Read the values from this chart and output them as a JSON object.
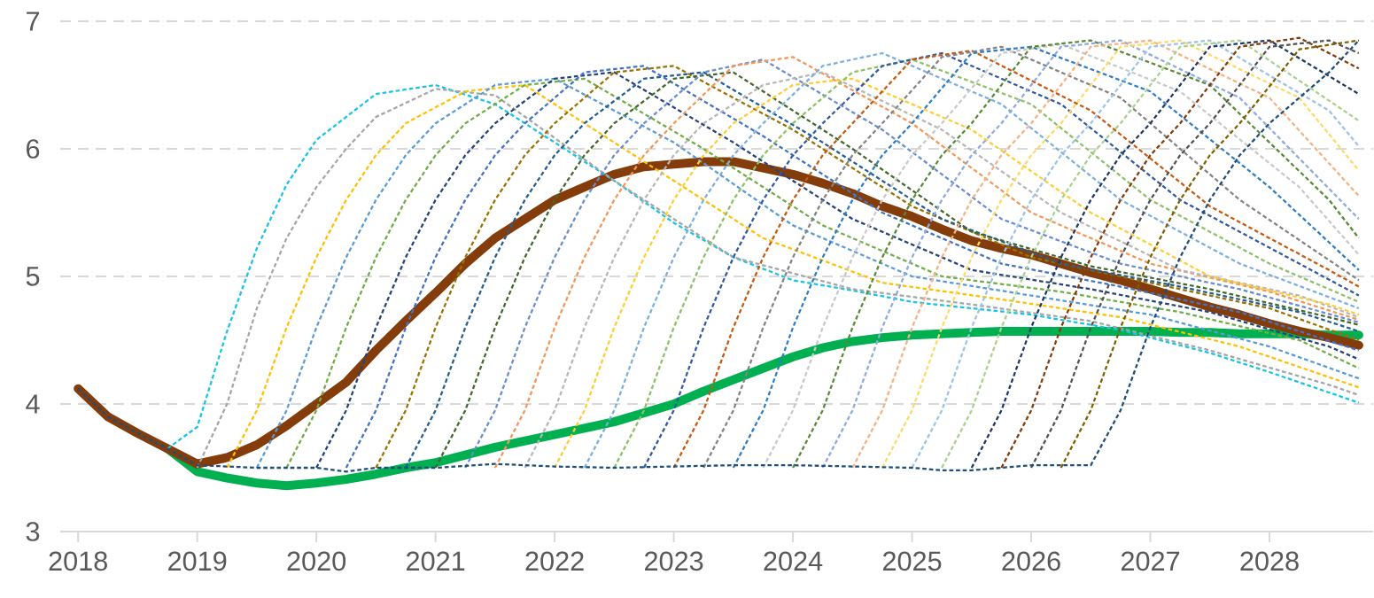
{
  "chart_data": {
    "type": "line",
    "xlim": [
      2017.85,
      2028.87
    ],
    "xticks": [
      2018,
      2019,
      2020,
      2021,
      2022,
      2023,
      2024,
      2025,
      2026,
      2027,
      2028
    ],
    "ylim": [
      3,
      7
    ],
    "yticks": [
      3,
      4,
      5,
      6,
      7
    ],
    "grid": "y",
    "legend": false,
    "series": [
      {
        "color": "#17c3e6",
        "line_style": "dashed",
        "x": [
          2018.75,
          2019,
          2019.25,
          2019.5,
          2019.75,
          2020,
          2020.5,
          2021,
          2021.5,
          2022,
          2022.5,
          2023,
          2023.5,
          2024,
          2024.5,
          2025,
          2026,
          2026.75,
          2027.5,
          2028,
          2028.75
        ],
        "values": [
          3.65,
          3.82,
          4.57,
          5.22,
          5.72,
          6.07,
          6.43,
          6.5,
          6.35,
          6.05,
          5.75,
          5.42,
          5.15,
          4.97,
          4.89,
          4.8,
          4.7,
          4.58,
          4.4,
          4.25,
          4.01
        ]
      },
      {
        "color": "#a5a5a5",
        "line_style": "dashed",
        "x": [
          2019,
          2019.25,
          2019.5,
          2019.75,
          2020,
          2020.25,
          2020.5,
          2021,
          2021.5,
          2022.5,
          2023.5,
          2024.5,
          2025.5,
          2026.5,
          2027.5,
          2028.5,
          2028.75
        ],
        "values": [
          3.5,
          4.0,
          4.75,
          5.3,
          5.7,
          6.0,
          6.25,
          6.47,
          6.42,
          5.75,
          5.15,
          4.9,
          4.78,
          4.65,
          4.42,
          4.15,
          4.07
        ]
      },
      {
        "color": "#ffc000",
        "line_style": "dashed",
        "x": [
          2019.25,
          2019.5,
          2019.75,
          2020,
          2020.25,
          2020.5,
          2020.75,
          2021.25,
          2021.75,
          2022.75,
          2023.75,
          2024.75,
          2025.75,
          2026.75,
          2027.75,
          2028.75
        ],
        "values": [
          3.5,
          3.95,
          4.6,
          5.15,
          5.6,
          5.95,
          6.2,
          6.45,
          6.5,
          5.9,
          5.3,
          4.95,
          4.82,
          4.68,
          4.45,
          4.13
        ]
      },
      {
        "color": "#5b9bd5",
        "line_style": "dashed",
        "x": [
          2019.5,
          2019.75,
          2020,
          2020.25,
          2020.5,
          2020.75,
          2021,
          2021.5,
          2022,
          2023,
          2024,
          2025,
          2026,
          2027,
          2028,
          2028.75
        ],
        "values": [
          3.5,
          3.95,
          4.6,
          5.15,
          5.6,
          5.95,
          6.2,
          6.5,
          6.55,
          6.05,
          5.4,
          5.0,
          4.85,
          4.7,
          4.45,
          4.2
        ]
      },
      {
        "color": "#70ad47",
        "line_style": "dashed",
        "x": [
          2019.75,
          2020,
          2020.25,
          2020.5,
          2020.75,
          2021,
          2021.25,
          2021.75,
          2022.25,
          2023.25,
          2024.25,
          2025.25,
          2026.25,
          2027.25,
          2028.25,
          2028.75
        ],
        "values": [
          3.5,
          3.95,
          4.6,
          5.15,
          5.6,
          5.95,
          6.2,
          6.5,
          6.55,
          6.0,
          5.4,
          5.0,
          4.88,
          4.72,
          4.5,
          4.28
        ]
      },
      {
        "color": "#264478",
        "line_style": "dashed",
        "x": [
          2020,
          2020.25,
          2020.5,
          2020.75,
          2021,
          2021.25,
          2021.5,
          2022,
          2022.5,
          2023.5,
          2024.5,
          2025.5,
          2026.5,
          2027.5,
          2028.5,
          2028.75
        ],
        "values": [
          3.5,
          3.95,
          4.6,
          5.15,
          5.6,
          5.95,
          6.2,
          6.55,
          6.6,
          6.05,
          5.45,
          5.05,
          4.9,
          4.72,
          4.45,
          4.35
        ]
      },
      {
        "color": "#4472c4",
        "line_style": "dashed",
        "x": [
          2020.25,
          2020.5,
          2020.75,
          2021,
          2021.25,
          2021.5,
          2021.75,
          2022.25,
          2022.75,
          2023.75,
          2024.75,
          2025.75,
          2026.75,
          2027.75,
          2028.75
        ],
        "values": [
          3.5,
          3.95,
          4.6,
          5.15,
          5.6,
          5.95,
          6.2,
          6.6,
          6.65,
          6.1,
          5.5,
          5.1,
          4.92,
          4.72,
          4.42
        ]
      },
      {
        "color": "#997300",
        "line_style": "dashed",
        "x": [
          2020.5,
          2020.75,
          2021,
          2021.25,
          2021.5,
          2021.75,
          2022,
          2022.5,
          2023,
          2024,
          2025,
          2026,
          2027,
          2028,
          2028.75
        ],
        "values": [
          3.5,
          3.95,
          4.6,
          5.15,
          5.6,
          5.95,
          6.2,
          6.6,
          6.65,
          6.15,
          5.55,
          5.15,
          4.95,
          4.75,
          4.5
        ]
      },
      {
        "color": "#255e91",
        "line_style": "dashed",
        "x": [
          2020.75,
          2021,
          2021.25,
          2021.5,
          2021.75,
          2022,
          2022.25,
          2022.75,
          2023.25,
          2024.25,
          2025.25,
          2026.25,
          2027.25,
          2028.25,
          2028.75
        ],
        "values": [
          3.5,
          3.95,
          4.6,
          5.15,
          5.6,
          5.95,
          6.2,
          6.55,
          6.6,
          6.05,
          5.45,
          5.1,
          4.92,
          4.72,
          4.57
        ]
      },
      {
        "color": "#43682b",
        "line_style": "dashed",
        "x": [
          2021,
          2021.25,
          2021.5,
          2021.75,
          2022,
          2022.25,
          2022.5,
          2023,
          2023.5,
          2024.5,
          2025.5,
          2026.5,
          2027.5,
          2028.5,
          2028.75
        ],
        "values": [
          3.5,
          3.95,
          4.6,
          5.15,
          5.6,
          5.95,
          6.2,
          6.55,
          6.6,
          6.0,
          5.35,
          5.08,
          4.9,
          4.68,
          4.62
        ]
      },
      {
        "color": "#698ed0",
        "line_style": "dashed",
        "x": [
          2021.25,
          2021.5,
          2021.75,
          2022,
          2022.25,
          2022.5,
          2022.75,
          2023.25,
          2023.75,
          2024.75,
          2025.75,
          2026.75,
          2027.75,
          2028.75
        ],
        "values": [
          3.5,
          3.95,
          4.6,
          5.15,
          5.6,
          5.95,
          6.2,
          6.6,
          6.7,
          6.15,
          5.45,
          5.1,
          4.9,
          4.64
        ]
      },
      {
        "color": "#f1975a",
        "line_style": "dashed",
        "x": [
          2021.5,
          2021.75,
          2022,
          2022.25,
          2022.5,
          2022.75,
          2023,
          2023.5,
          2024,
          2025,
          2026,
          2027,
          2028,
          2028.75
        ],
        "values": [
          3.5,
          3.95,
          4.6,
          5.15,
          5.6,
          5.95,
          6.2,
          6.65,
          6.72,
          6.2,
          5.5,
          5.1,
          4.88,
          4.66
        ]
      },
      {
        "color": "#b7b7b7",
        "line_style": "dashed",
        "x": [
          2021.75,
          2022,
          2022.25,
          2022.5,
          2022.75,
          2023,
          2023.25,
          2023.75,
          2024.25,
          2025.25,
          2026.25,
          2027.25,
          2028.25,
          2028.75
        ],
        "values": [
          3.5,
          3.95,
          4.6,
          5.15,
          5.6,
          5.95,
          6.2,
          6.5,
          6.6,
          6.15,
          5.5,
          5.05,
          4.85,
          4.68
        ]
      },
      {
        "color": "#ffcd33",
        "line_style": "dashed",
        "x": [
          2022,
          2022.25,
          2022.5,
          2022.75,
          2023,
          2023.25,
          2023.5,
          2024,
          2024.5,
          2025.5,
          2026.5,
          2027.5,
          2028.5,
          2028.75
        ],
        "values": [
          3.5,
          3.95,
          4.6,
          5.15,
          5.6,
          5.95,
          6.2,
          6.5,
          6.55,
          6.15,
          5.5,
          5.0,
          4.78,
          4.7
        ]
      },
      {
        "color": "#7cafdd",
        "line_style": "dashed",
        "x": [
          2022.25,
          2022.5,
          2022.75,
          2023,
          2023.25,
          2023.5,
          2023.75,
          2024.25,
          2024.75,
          2025.75,
          2026.75,
          2027.75,
          2028.75
        ],
        "values": [
          3.5,
          3.95,
          4.6,
          5.15,
          5.6,
          5.95,
          6.2,
          6.65,
          6.75,
          6.35,
          5.6,
          5.1,
          4.75
        ]
      },
      {
        "color": "#8cc168",
        "line_style": "dashed",
        "x": [
          2022.5,
          2022.75,
          2023,
          2023.25,
          2023.5,
          2023.75,
          2024,
          2024.5,
          2025,
          2026,
          2027,
          2028,
          2028.75
        ],
        "values": [
          3.5,
          3.95,
          4.6,
          5.15,
          5.6,
          5.95,
          6.2,
          6.6,
          6.7,
          6.35,
          5.6,
          5.1,
          4.8
        ]
      },
      {
        "color": "#335aa1",
        "line_style": "dashed",
        "x": [
          2022.75,
          2023,
          2023.25,
          2023.5,
          2023.75,
          2024,
          2024.25,
          2024.75,
          2025.25,
          2026.25,
          2027.25,
          2028.25,
          2028.75
        ],
        "values": [
          3.5,
          3.95,
          4.6,
          5.15,
          5.6,
          5.95,
          6.2,
          6.65,
          6.75,
          6.35,
          5.6,
          5.1,
          4.85
        ]
      },
      {
        "color": "#c55a11",
        "line_style": "dashed",
        "x": [
          2023,
          2023.25,
          2023.5,
          2023.75,
          2024,
          2024.25,
          2024.5,
          2025,
          2025.5,
          2026.5,
          2027.5,
          2028.5,
          2028.75
        ],
        "values": [
          3.5,
          3.95,
          4.6,
          5.15,
          5.6,
          5.95,
          6.2,
          6.7,
          6.77,
          6.3,
          5.55,
          5.05,
          4.92
        ]
      },
      {
        "color": "#848484",
        "line_style": "dashed",
        "x": [
          2023.25,
          2023.5,
          2023.75,
          2024,
          2024.25,
          2024.5,
          2024.75,
          2025.25,
          2025.75,
          2026.75,
          2027.75,
          2028.75
        ],
        "values": [
          3.5,
          3.95,
          4.6,
          5.15,
          5.6,
          5.95,
          6.2,
          6.72,
          6.8,
          6.4,
          5.6,
          4.97
        ]
      },
      {
        "color": "#327dc2",
        "line_style": "dashed",
        "x": [
          2023.5,
          2023.75,
          2024,
          2024.25,
          2024.5,
          2024.75,
          2025,
          2025.5,
          2026,
          2027,
          2028,
          2028.75
        ],
        "values": [
          3.5,
          3.95,
          4.6,
          5.15,
          5.6,
          5.95,
          6.2,
          6.75,
          6.8,
          6.45,
          5.7,
          5.05
        ]
      },
      {
        "color": "#c9c9c9",
        "line_style": "dashed",
        "x": [
          2023.75,
          2024,
          2024.25,
          2024.5,
          2024.75,
          2025,
          2025.25,
          2025.75,
          2026.25,
          2027.25,
          2028.25,
          2028.75
        ],
        "values": [
          3.5,
          3.95,
          4.6,
          5.15,
          5.6,
          5.95,
          6.2,
          6.75,
          6.82,
          6.45,
          5.7,
          5.17
        ]
      },
      {
        "color": "#5a8a39",
        "line_style": "dashed",
        "x": [
          2024,
          2024.25,
          2024.5,
          2024.75,
          2025,
          2025.25,
          2025.5,
          2026,
          2026.5,
          2027.5,
          2028.5,
          2028.75
        ],
        "values": [
          3.5,
          3.95,
          4.6,
          5.15,
          5.6,
          5.95,
          6.2,
          6.8,
          6.85,
          6.5,
          5.6,
          5.3
        ]
      },
      {
        "color": "#8faadc",
        "line_style": "dashed",
        "x": [
          2024.25,
          2024.5,
          2024.75,
          2025,
          2025.25,
          2025.5,
          2025.75,
          2026.25,
          2026.75,
          2027.75,
          2028.75
        ],
        "values": [
          3.5,
          3.95,
          4.6,
          5.15,
          5.6,
          5.95,
          6.2,
          6.8,
          6.85,
          6.4,
          5.45
        ]
      },
      {
        "color": "#f4b183",
        "line_style": "dashed",
        "x": [
          2024.5,
          2024.75,
          2025,
          2025.25,
          2025.5,
          2025.75,
          2026,
          2026.5,
          2027,
          2028,
          2028.75
        ],
        "values": [
          3.5,
          3.95,
          4.6,
          5.15,
          5.6,
          5.95,
          6.2,
          6.8,
          6.85,
          6.4,
          5.63
        ]
      },
      {
        "color": "#ffd966",
        "line_style": "dashed",
        "x": [
          2024.75,
          2025,
          2025.25,
          2025.5,
          2025.75,
          2026,
          2026.25,
          2026.75,
          2027.25,
          2028.25,
          2028.75
        ],
        "values": [
          3.5,
          3.95,
          4.6,
          5.15,
          5.6,
          5.95,
          6.2,
          6.8,
          6.85,
          6.4,
          5.83
        ]
      },
      {
        "color": "#9dc3e6",
        "line_style": "dashed",
        "x": [
          2025,
          2025.25,
          2025.5,
          2025.75,
          2026,
          2026.25,
          2026.5,
          2027,
          2027.5,
          2028.5,
          2028.75
        ],
        "values": [
          3.5,
          3.95,
          4.6,
          5.15,
          5.6,
          5.95,
          6.2,
          6.8,
          6.85,
          6.3,
          6.02
        ]
      },
      {
        "color": "#a9d18e",
        "line_style": "dashed",
        "x": [
          2025.25,
          2025.5,
          2025.75,
          2026,
          2026.25,
          2026.5,
          2026.75,
          2027.25,
          2027.75,
          2028.75
        ],
        "values": [
          3.5,
          3.95,
          4.6,
          5.15,
          5.6,
          5.95,
          6.2,
          6.8,
          6.85,
          6.22
        ]
      },
      {
        "color": "#203864",
        "line_style": "dashed",
        "x": [
          2025.5,
          2025.75,
          2026,
          2026.25,
          2026.5,
          2026.75,
          2027,
          2027.5,
          2028,
          2028.75
        ],
        "values": [
          3.5,
          3.95,
          4.6,
          5.15,
          5.6,
          5.95,
          6.2,
          6.8,
          6.85,
          6.43
        ]
      },
      {
        "color": "#843c0c",
        "line_style": "dashed",
        "x": [
          2025.75,
          2026,
          2026.25,
          2026.5,
          2026.75,
          2027,
          2027.25,
          2027.75,
          2028.25,
          2028.75
        ],
        "values": [
          3.5,
          3.95,
          4.6,
          5.15,
          5.6,
          5.95,
          6.2,
          6.8,
          6.87,
          6.63
        ]
      },
      {
        "color": "#525252",
        "line_style": "dashed",
        "x": [
          2026,
          2026.25,
          2026.5,
          2026.75,
          2027,
          2027.25,
          2027.5,
          2028,
          2028.5,
          2028.75
        ],
        "values": [
          3.5,
          3.95,
          4.6,
          5.15,
          5.6,
          5.95,
          6.2,
          6.8,
          6.85,
          6.75
        ]
      },
      {
        "color": "#7f6000",
        "line_style": "dashed",
        "x": [
          2026.25,
          2026.5,
          2026.75,
          2027,
          2027.25,
          2027.5,
          2027.75,
          2028.25,
          2028.75
        ],
        "values": [
          3.5,
          3.95,
          4.6,
          5.15,
          5.6,
          5.95,
          6.2,
          6.78,
          6.85
        ]
      },
      {
        "color": "#1f4e79",
        "line_style": "dashed",
        "x": [
          2018,
          2018.25,
          2018.5,
          2018.75,
          2019,
          2019.5,
          2020,
          2020.25,
          2020.5,
          2021,
          2021.5,
          2022,
          2022.5,
          2023,
          2023.5,
          2024,
          2024.5,
          2025,
          2025.25,
          2025.5,
          2025.75,
          2026,
          2026.5,
          2026.75,
          2027,
          2027.25,
          2027.5,
          2027.75,
          2028,
          2028.5,
          2028.75
        ],
        "values": [
          4.12,
          3.9,
          3.77,
          3.65,
          3.52,
          3.5,
          3.5,
          3.47,
          3.5,
          3.5,
          3.53,
          3.51,
          3.5,
          3.51,
          3.52,
          3.52,
          3.51,
          3.5,
          3.48,
          3.48,
          3.5,
          3.52,
          3.52,
          3.95,
          4.6,
          5.15,
          5.6,
          5.95,
          6.2,
          6.6,
          6.85
        ]
      },
      {
        "color": "#00b050",
        "line_style": "solid",
        "x": [
          2018.75,
          2019,
          2019.25,
          2019.5,
          2019.75,
          2020,
          2020.25,
          2020.5,
          2020.75,
          2021,
          2021.25,
          2021.5,
          2021.75,
          2022,
          2022.25,
          2022.5,
          2022.75,
          2023,
          2023.25,
          2023.5,
          2023.75,
          2024,
          2024.25,
          2024.5,
          2024.75,
          2025,
          2025.25,
          2025.5,
          2025.75,
          2026,
          2026.25,
          2026.5,
          2026.75,
          2027,
          2027.25,
          2027.5,
          2027.75,
          2028,
          2028.25,
          2028.5,
          2028.75
        ],
        "values": [
          3.65,
          3.47,
          3.42,
          3.38,
          3.36,
          3.38,
          3.41,
          3.45,
          3.5,
          3.54,
          3.6,
          3.66,
          3.71,
          3.76,
          3.81,
          3.86,
          3.93,
          4.0,
          4.1,
          4.19,
          4.28,
          4.37,
          4.44,
          4.49,
          4.52,
          4.54,
          4.55,
          4.56,
          4.57,
          4.57,
          4.57,
          4.57,
          4.57,
          4.57,
          4.56,
          4.56,
          4.55,
          4.55,
          4.55,
          4.54,
          4.54
        ]
      },
      {
        "color": "#843c0b",
        "line_style": "solid",
        "x": [
          2018,
          2018.25,
          2018.5,
          2018.75,
          2019,
          2019.25,
          2019.5,
          2019.75,
          2020,
          2020.25,
          2020.5,
          2020.75,
          2021,
          2021.25,
          2021.5,
          2021.75,
          2022,
          2022.25,
          2022.5,
          2022.75,
          2023,
          2023.25,
          2023.5,
          2023.75,
          2024,
          2024.25,
          2024.5,
          2024.75,
          2025,
          2025.25,
          2025.5,
          2025.75,
          2026,
          2026.25,
          2026.5,
          2026.75,
          2027,
          2027.25,
          2027.5,
          2027.75,
          2028,
          2028.25,
          2028.5,
          2028.75
        ],
        "values": [
          4.12,
          3.9,
          3.77,
          3.65,
          3.53,
          3.58,
          3.68,
          3.83,
          4.0,
          4.17,
          4.42,
          4.65,
          4.87,
          5.1,
          5.3,
          5.45,
          5.6,
          5.7,
          5.8,
          5.86,
          5.88,
          5.9,
          5.9,
          5.85,
          5.8,
          5.73,
          5.65,
          5.55,
          5.47,
          5.37,
          5.28,
          5.22,
          5.17,
          5.1,
          5.03,
          4.97,
          4.9,
          4.83,
          4.76,
          4.7,
          4.63,
          4.57,
          4.52,
          4.46
        ]
      }
    ]
  }
}
